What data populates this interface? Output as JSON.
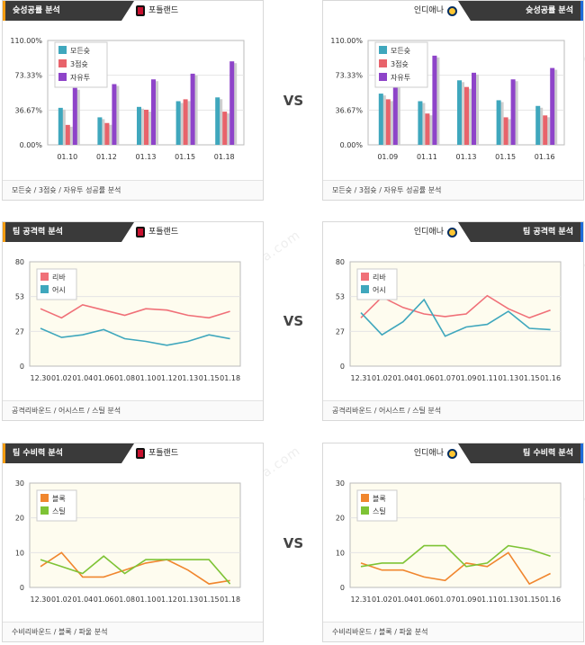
{
  "vs_label": "VS",
  "sections": [
    {
      "key": "shooting",
      "left_title": "슛성공률 분석",
      "right_title": "슛성공률 분석",
      "footer": "모든슛 / 3점슛 / 자유투 성공률 분석"
    },
    {
      "key": "offense",
      "left_title": "팀 공격력 분석",
      "right_title": "팀 공격력 분석",
      "footer": "공격리바운드 / 어시스트 / 스틸 분석"
    },
    {
      "key": "defense",
      "left_title": "팀 수비력 분석",
      "right_title": "팀 수비력 분석",
      "footer": "수비리바운드 / 블록 / 파울 분석"
    }
  ],
  "teams": {
    "left": {
      "name": "포틀랜드",
      "logo_icon": "portland-logo-icon"
    },
    "right": {
      "name": "인디애나",
      "logo_icon": "indiana-logo-icon"
    }
  },
  "watermark_text": "토토박사 totobaksa.com",
  "colors": {
    "tab_bg": "#3a3a3a",
    "left_accent": "#f39c12",
    "right_accent": "#1e6bd8",
    "bar_all": "#3fa7bd",
    "bar_three": "#e8636b",
    "bar_ft": "#8e44c9",
    "line_reb": "#f07078",
    "line_ast": "#3fa7bd",
    "line_blk": "#f0862e",
    "line_stl": "#7ec335",
    "plot_bg": "#fefcef"
  },
  "chart_data": [
    {
      "id": "left-shooting",
      "type": "bar",
      "categories": [
        "01.10",
        "01.12",
        "01.13",
        "01.15",
        "01.18"
      ],
      "series": [
        {
          "name": "모든슛",
          "values": [
            39,
            29,
            40,
            46,
            50
          ]
        },
        {
          "name": "3점슛",
          "values": [
            21,
            23,
            37,
            48,
            35
          ]
        },
        {
          "name": "자유투",
          "values": [
            60,
            64,
            69,
            75,
            88
          ]
        }
      ],
      "yticks": [
        "0.00%",
        "36.67%",
        "73.33%",
        "110.00%"
      ],
      "ylim": [
        0,
        110
      ]
    },
    {
      "id": "right-shooting",
      "type": "bar",
      "categories": [
        "01.09",
        "01.11",
        "01.13",
        "01.15",
        "01.16"
      ],
      "series": [
        {
          "name": "모든슛",
          "values": [
            54,
            46,
            68,
            47,
            41
          ]
        },
        {
          "name": "3점슛",
          "values": [
            48,
            33,
            61,
            29,
            31
          ]
        },
        {
          "name": "자유투",
          "values": [
            71,
            94,
            76,
            69,
            81
          ]
        }
      ],
      "yticks": [
        "0.00%",
        "36.67%",
        "73.33%",
        "110.00%"
      ],
      "ylim": [
        0,
        110
      ]
    },
    {
      "id": "left-offense",
      "type": "line",
      "categories": [
        "12.30",
        "01.02",
        "01.04",
        "01.06",
        "01.08",
        "01.10",
        "01.12",
        "01.13",
        "01.15",
        "01.18"
      ],
      "series": [
        {
          "name": "리바",
          "values": [
            44,
            37,
            47,
            43,
            39,
            44,
            43,
            39,
            37,
            42
          ]
        },
        {
          "name": "어시",
          "values": [
            29,
            22,
            24,
            28,
            21,
            19,
            16,
            19,
            24,
            21
          ]
        }
      ],
      "yticks": [
        "0",
        "27",
        "53",
        "80"
      ],
      "ylim": [
        0,
        80
      ]
    },
    {
      "id": "right-offense",
      "type": "line",
      "categories": [
        "12.31",
        "01.02",
        "01.04",
        "01.06",
        "01.07",
        "01.09",
        "01.11",
        "01.13",
        "01.15",
        "01.16"
      ],
      "series": [
        {
          "name": "리바",
          "values": [
            37,
            53,
            45,
            40,
            38,
            40,
            54,
            44,
            37,
            43
          ]
        },
        {
          "name": "어시",
          "values": [
            41,
            24,
            34,
            51,
            23,
            30,
            32,
            42,
            29,
            28
          ]
        }
      ],
      "yticks": [
        "0",
        "27",
        "53",
        "80"
      ],
      "ylim": [
        0,
        80
      ]
    },
    {
      "id": "left-defense",
      "type": "line",
      "categories": [
        "12.30",
        "01.02",
        "01.04",
        "01.06",
        "01.08",
        "01.10",
        "01.12",
        "01.13",
        "01.15",
        "01.18"
      ],
      "series": [
        {
          "name": "블록",
          "values": [
            6,
            10,
            3,
            3,
            5,
            7,
            8,
            5,
            1,
            2
          ]
        },
        {
          "name": "스틸",
          "values": [
            8,
            6,
            4,
            9,
            4,
            8,
            8,
            8,
            8,
            1
          ]
        }
      ],
      "yticks": [
        "0",
        "10",
        "20",
        "30"
      ],
      "ylim": [
        0,
        30
      ]
    },
    {
      "id": "right-defense",
      "type": "line",
      "categories": [
        "12.31",
        "01.02",
        "01.04",
        "01.06",
        "01.07",
        "01.09",
        "01.11",
        "01.13",
        "01.15",
        "01.16"
      ],
      "series": [
        {
          "name": "블록",
          "values": [
            7,
            5,
            5,
            3,
            2,
            7,
            6,
            10,
            1,
            4
          ]
        },
        {
          "name": "스틸",
          "values": [
            6,
            7,
            7,
            12,
            12,
            6,
            7,
            12,
            11,
            9
          ]
        }
      ],
      "yticks": [
        "0",
        "10",
        "20",
        "30"
      ],
      "ylim": [
        0,
        30
      ]
    }
  ]
}
